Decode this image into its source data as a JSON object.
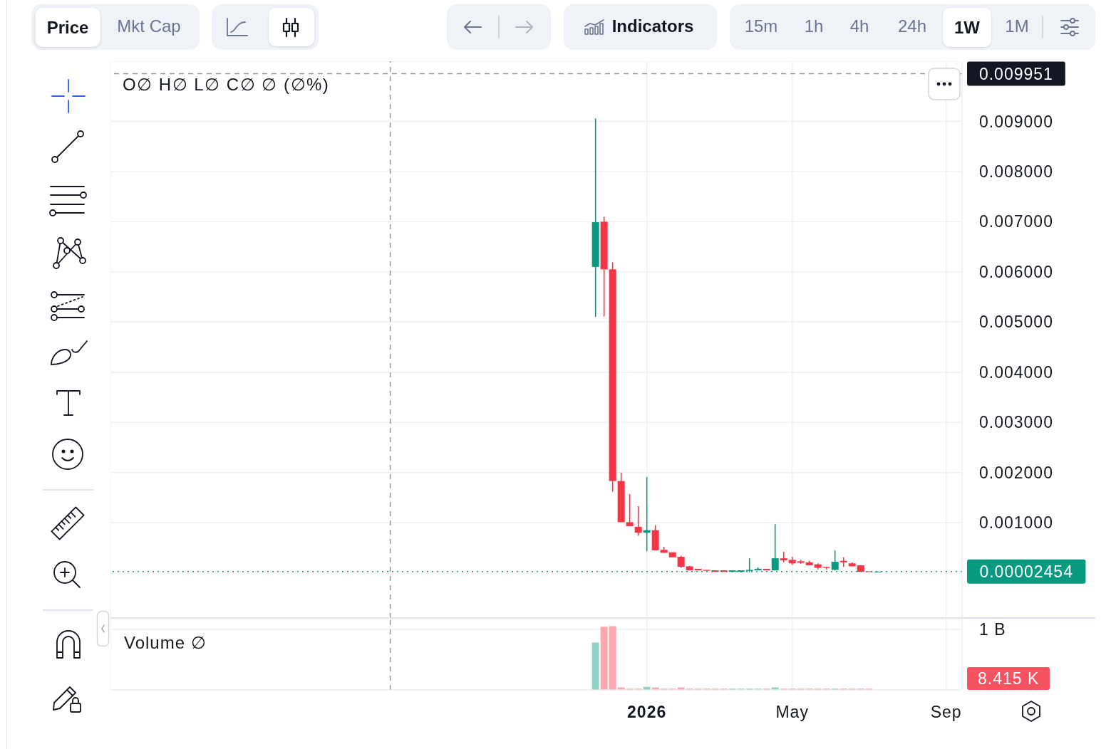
{
  "chart_data": [
    {
      "type": "other",
      "annotations": [
        "Price",
        "Mkt Cap",
        "Indicators",
        "15m",
        "1h",
        "4h",
        "24h",
        "1W",
        "1M"
      ]
    },
    {
      "type": "candlestick",
      "x": [
        "2025-11-24",
        "2025-12-01",
        "2025-12-08",
        "2025-12-15",
        "2025-12-22",
        "2025-12-29",
        "2026-01-05",
        "2026-01-12",
        "2026-01-19",
        "2026-01-26",
        "2026-02-02",
        "2026-02-09",
        "2026-02-16",
        "2026-02-23",
        "2026-03-02",
        "2026-03-09",
        "2026-03-16",
        "2026-03-23",
        "2026-03-30",
        "2026-04-06",
        "2026-04-13",
        "2026-04-20",
        "2026-04-27",
        "2026-05-04",
        "2026-05-11",
        "2026-05-18",
        "2026-05-25",
        "2026-06-01",
        "2026-06-08",
        "2026-06-15",
        "2026-06-22",
        "2026-06-29",
        "2026-07-06",
        "2026-07-13"
      ],
      "ohlc": [
        [
          0.0061,
          0.00906,
          0.0051,
          0.00699
        ],
        [
          0.007,
          0.0071,
          0.00511,
          0.00605
        ],
        [
          0.00605,
          0.00619,
          0.00162,
          0.00183
        ],
        [
          0.00183,
          0.002,
          0.00101,
          0.00101
        ],
        [
          0.00101,
          0.00157,
          0.00093,
          0.00093
        ],
        [
          0.00092,
          0.00133,
          0.00074,
          0.0008
        ],
        [
          0.0008,
          0.00191,
          0.00043,
          0.00085
        ],
        [
          0.00085,
          0.00095,
          0.00045,
          0.00045
        ],
        [
          0.00046,
          0.00052,
          0.0004,
          0.0004
        ],
        [
          0.00041,
          0.00041,
          0.00031,
          0.00031
        ],
        [
          0.00032,
          0.00034,
          0.0001,
          0.00012
        ],
        [
          0.00013,
          0.00014,
          5e-05,
          5e-05
        ],
        [
          8e-05,
          8e-05,
          5e-05,
          5e-05
        ],
        [
          6e-05,
          6e-05,
          4e-05,
          4e-05
        ],
        [
          5e-05,
          5e-05,
          2e-05,
          2e-05
        ],
        [
          5e-05,
          5e-05,
          2e-05,
          2e-05
        ],
        [
          2e-05,
          5e-05,
          1e-05,
          5e-05
        ],
        [
          2e-05,
          5e-05,
          1e-05,
          5e-05
        ],
        [
          4e-05,
          0.00029,
          1e-05,
          6e-05
        ],
        [
          5e-05,
          0.00011,
          5e-05,
          8e-05
        ],
        [
          8e-05,
          8e-05,
          5e-05,
          5e-05
        ],
        [
          5e-05,
          0.00097,
          5e-05,
          0.00029
        ],
        [
          0.00029,
          0.00042,
          0.00021,
          0.00025
        ],
        [
          0.00026,
          0.00032,
          0.00016,
          0.00019
        ],
        [
          0.00023,
          0.00026,
          0.00018,
          0.0002
        ],
        [
          0.00021,
          0.00024,
          0.00015,
          0.00015
        ],
        [
          0.00017,
          0.00019,
          7e-05,
          0.0001
        ],
        [
          0.00012,
          0.00012,
          7e-05,
          0.0001
        ],
        [
          6e-05,
          0.00045,
          5e-05,
          0.00022
        ],
        [
          0.00024,
          0.00031,
          0.00012,
          0.00021
        ],
        [
          0.00019,
          0.00021,
          0.00013,
          0.00013
        ],
        [
          0.00015,
          0.00015,
          2e-05,
          2e-05
        ],
        [
          3e-05,
          3e-05,
          2e-05,
          2e-05
        ],
        [
          2e-05,
          2.454e-05,
          2e-05,
          2.454e-05
        ]
      ],
      "colors": [
        "#089981",
        "#f23645",
        "#f23645",
        "#f23645",
        "#f23645",
        "#f23645",
        "#089981",
        "#f23645",
        "#f23645",
        "#f23645",
        "#f23645",
        "#f23645",
        "#f23645",
        "#f23645",
        "#f23645",
        "#f23645",
        "#089981",
        "#089981",
        "#089981",
        "#089981",
        "#f23645",
        "#089981",
        "#f23645",
        "#f23645",
        "#f23645",
        "#f23645",
        "#f23645",
        "#f23645",
        "#089981",
        "#f23645",
        "#f23645",
        "#f23645",
        "#f23645",
        "#089981"
      ],
      "xlim": [
        "2024-10-23",
        "2026-09-20"
      ],
      "xticks": [
        {
          "value": "2026-01-05",
          "label": null
        },
        {
          "value": "2026-05-04",
          "label": null
        },
        {
          "value": "2026-09-07",
          "label": null
        }
      ],
      "ylim": [
        -0.0009,
        0.0102
      ],
      "yticks": [
        {
          "value": 0.001,
          "label": "0.001000"
        },
        {
          "value": 0.002,
          "label": "0.002000"
        },
        {
          "value": 0.003,
          "label": "0.003000"
        },
        {
          "value": 0.004,
          "label": "0.004000"
        },
        {
          "value": 0.005,
          "label": "0.005000"
        },
        {
          "value": 0.006,
          "label": "0.006000"
        },
        {
          "value": 0.007,
          "label": "0.007000"
        },
        {
          "value": 0.008,
          "label": "0.008000"
        },
        {
          "value": 0.009,
          "label": "0.009000"
        }
      ],
      "tick_labels": "y",
      "grid": true,
      "ref_lines": [
        {
          "axis": "y",
          "value": 0.009951,
          "label": "0.009951",
          "line_style": "dashed",
          "color": "#131722"
        },
        {
          "axis": "x",
          "value": "2025-06-09",
          "line_style": "dashed",
          "color": "#131722"
        },
        {
          "axis": "y",
          "value": 2.454e-05,
          "label": "0.00002454",
          "line_style": "dotted",
          "color": "#089981"
        }
      ],
      "annotations": [
        "O∅ H∅ L∅ C∅ ∅ (∅%)"
      ]
    },
    {
      "type": "bar",
      "x": [
        "2025-11-24",
        "2025-12-01",
        "2025-12-08",
        "2025-12-15",
        "2025-12-22",
        "2025-12-29",
        "2026-01-05",
        "2026-01-12",
        "2026-01-19",
        "2026-01-26",
        "2026-02-02",
        "2026-02-09",
        "2026-02-16",
        "2026-02-23",
        "2026-03-02",
        "2026-03-09",
        "2026-03-16",
        "2026-03-23",
        "2026-03-30",
        "2026-04-06",
        "2026-04-13",
        "2026-04-20",
        "2026-04-27",
        "2026-05-04",
        "2026-05-11",
        "2026-05-18",
        "2026-05-25",
        "2026-06-01",
        "2026-06-08",
        "2026-06-15",
        "2026-06-22",
        "2026-06-29",
        "2026-07-06"
      ],
      "values": [
        780000000,
        1040000000,
        1050000000,
        40000000,
        20000000,
        20000000,
        50000000,
        40000000,
        20000000,
        20000000,
        40000000,
        20000000,
        20000000,
        20000000,
        20000000,
        20000000,
        20000000,
        20000000,
        20000000,
        20000000,
        20000000,
        40000000,
        20000000,
        20000000,
        20000000,
        20000000,
        20000000,
        20000000,
        20000000,
        20000000,
        20000000,
        20000000,
        20000000
      ],
      "colors": [
        "#8fd3c6",
        "#faa7ad",
        "#faa7ad",
        "#faa7ad",
        "#faa7ad",
        "#faa7ad",
        "#8fd3c6",
        "#faa7ad",
        "#faa7ad",
        "#faa7ad",
        "#faa7ad",
        "#faa7ad",
        "#faa7ad",
        "#faa7ad",
        "#faa7ad",
        "#faa7ad",
        "#8fd3c6",
        "#8fd3c6",
        "#8fd3c6",
        "#8fd3c6",
        "#faa7ad",
        "#8fd3c6",
        "#faa7ad",
        "#faa7ad",
        "#faa7ad",
        "#faa7ad",
        "#faa7ad",
        "#faa7ad",
        "#8fd3c6",
        "#faa7ad",
        "#faa7ad",
        "#faa7ad",
        "#faa7ad"
      ],
      "xlim": [
        "2024-10-23",
        "2026-09-20"
      ],
      "xticks": [
        {
          "value": "2026-01-05",
          "label": "2026"
        },
        {
          "value": "2026-05-04",
          "label": "May"
        },
        {
          "value": "2026-09-07",
          "label": "Sep"
        }
      ],
      "ylim": [
        0,
        1160000000
      ],
      "yticks": [
        {
          "value": 1000000000,
          "label": "1 B"
        }
      ],
      "grid": true,
      "ref_lines": [
        {
          "axis": "x",
          "value": "2025-06-09",
          "line_style": "dashed",
          "color": "#131722"
        }
      ],
      "annotations": [
        "Volume ∅",
        "8.415 K"
      ]
    }
  ]
}
